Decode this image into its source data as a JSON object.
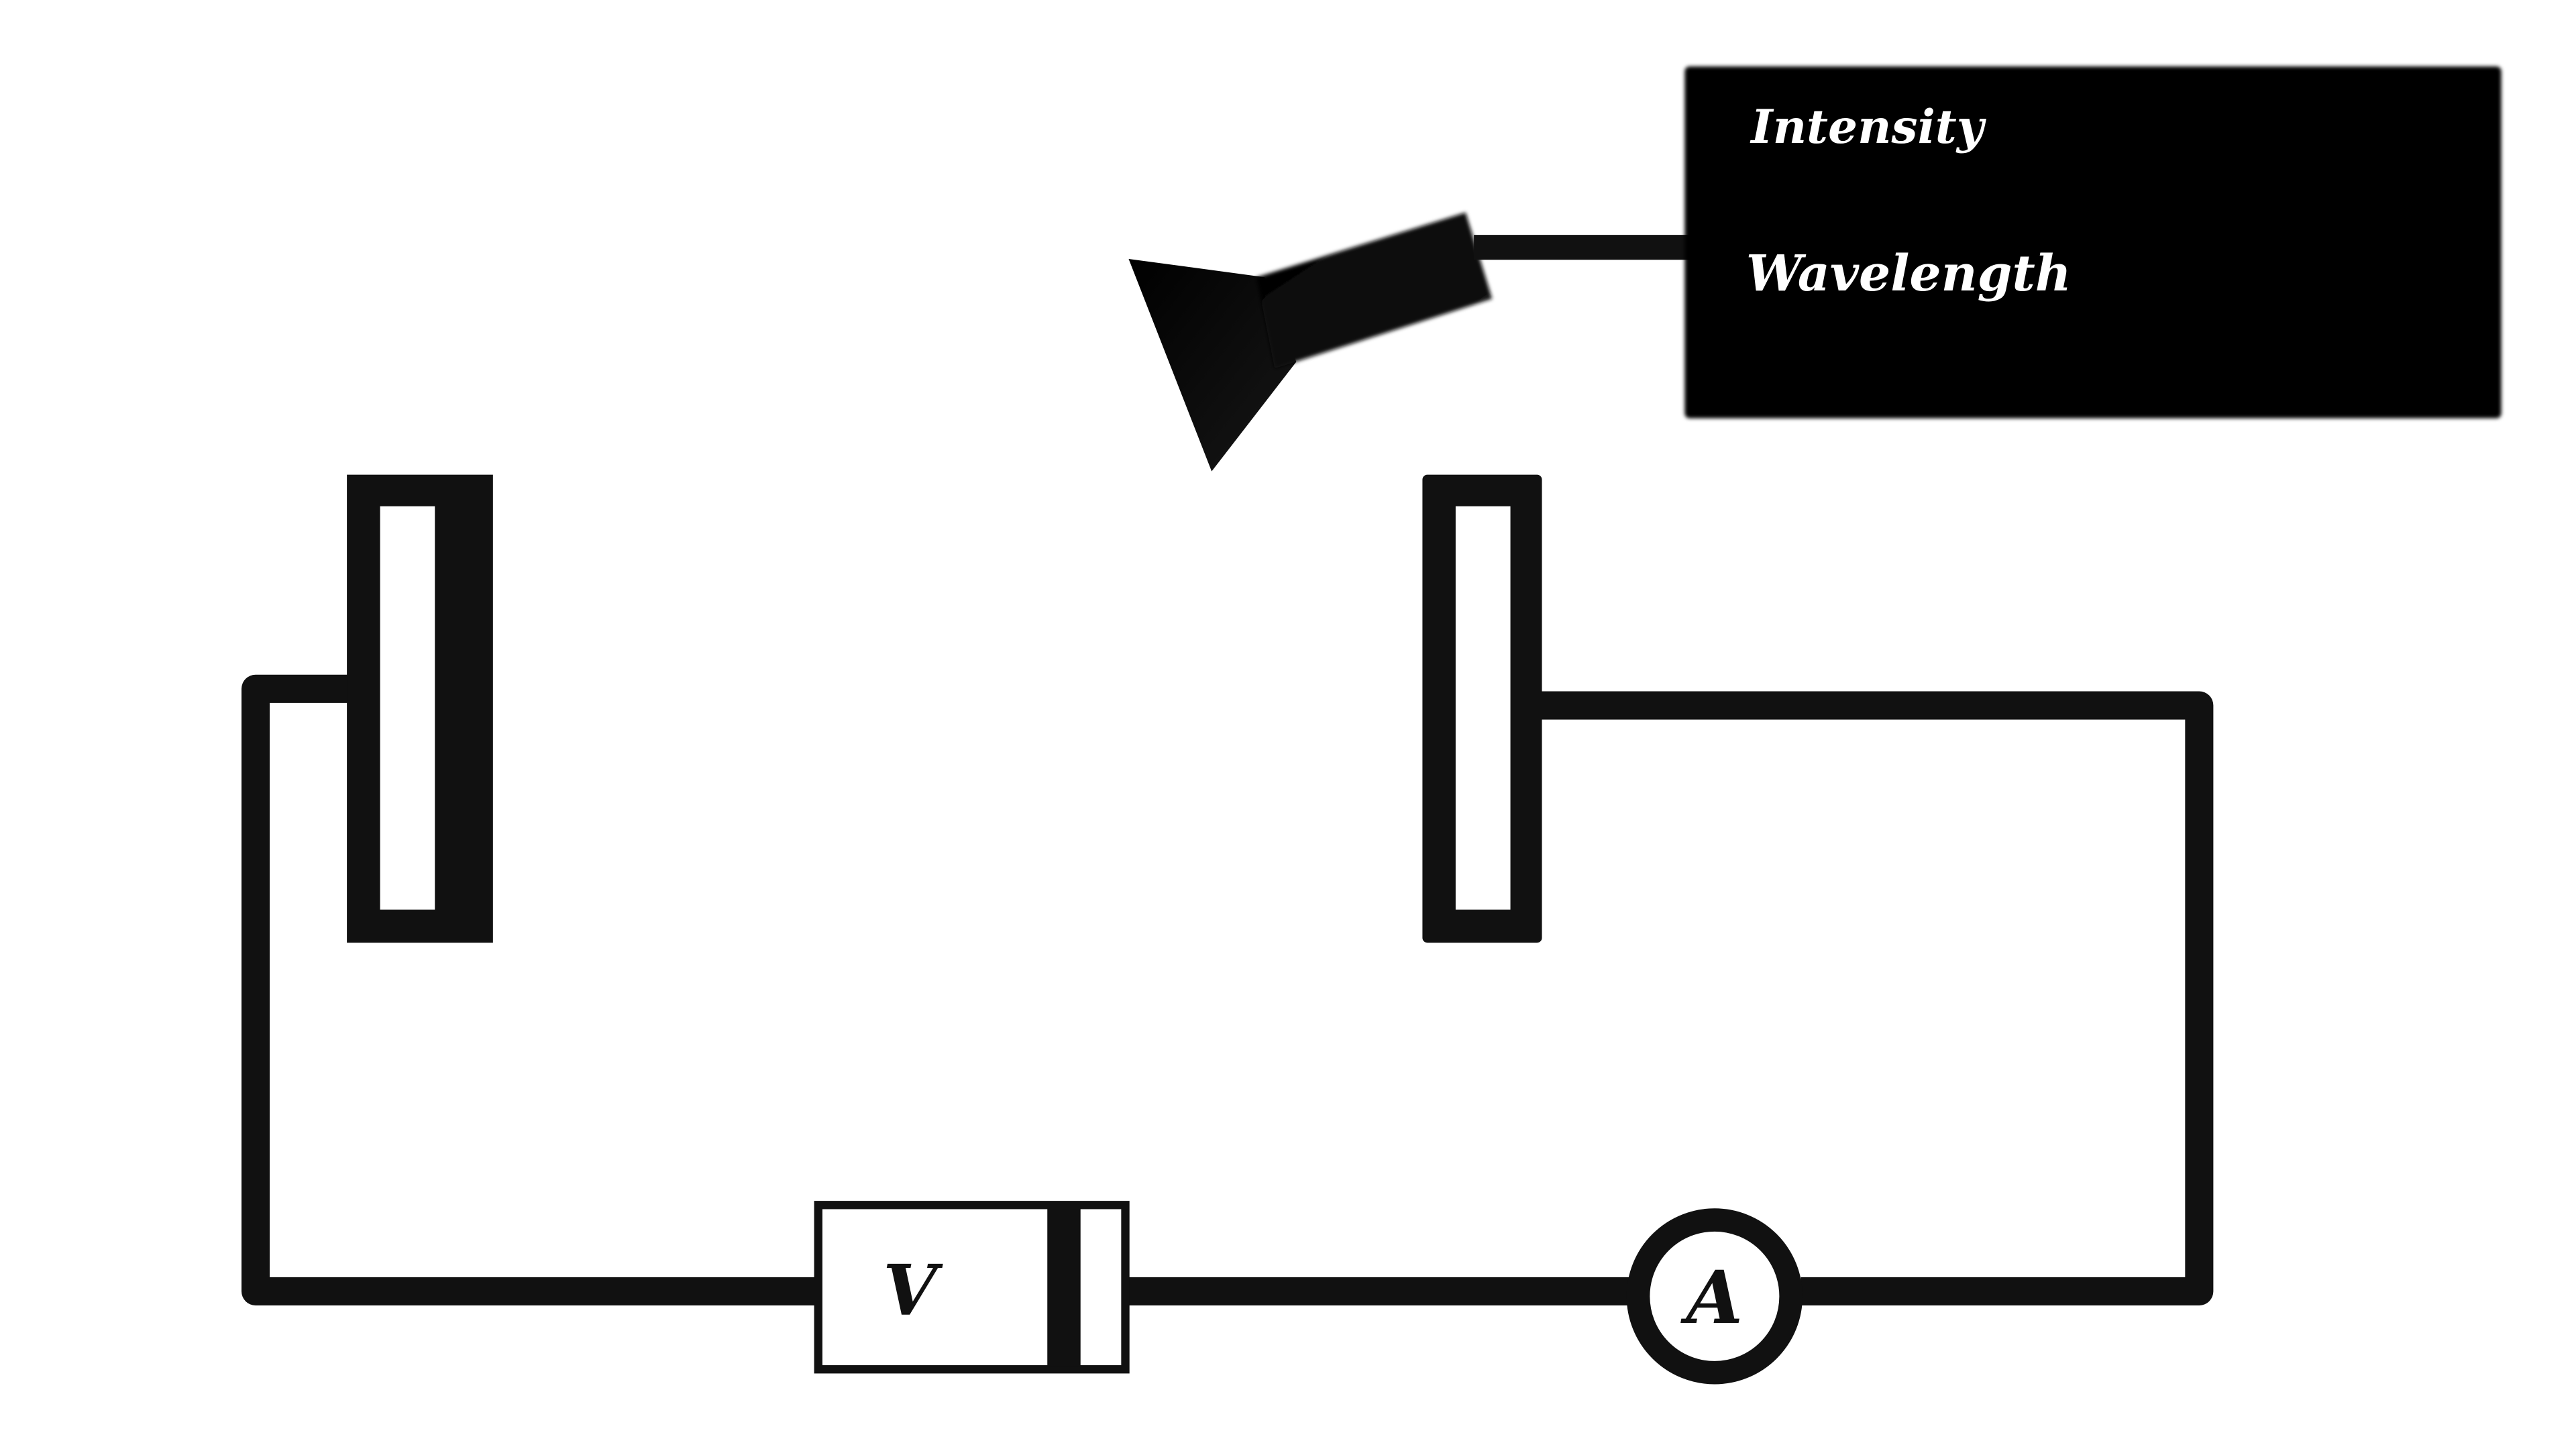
{
  "control_panel": {
    "intensity_label": "Intensity",
    "wavelength_label": "Wavelength"
  },
  "meters": {
    "voltage_symbol": "V",
    "ammeter_symbol": "A"
  },
  "colors": {
    "ink": "#111111",
    "panel": "#000000",
    "background": "#ffffff",
    "panel_text": "#ffffff"
  }
}
